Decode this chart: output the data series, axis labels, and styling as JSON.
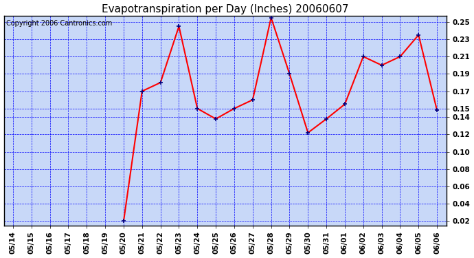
{
  "title": "Evapotranspiration per Day (Inches) 20060607",
  "copyright_text": "Copyright 2006 Cantronics.com",
  "x_labels": [
    "05/14",
    "05/15",
    "05/16",
    "05/17",
    "05/18",
    "05/19",
    "05/20",
    "05/21",
    "05/22",
    "05/23",
    "05/24",
    "05/25",
    "05/26",
    "05/27",
    "05/28",
    "05/29",
    "05/30",
    "05/31",
    "06/01",
    "06/02",
    "06/03",
    "06/04",
    "06/05",
    "06/06"
  ],
  "y_values": [
    null,
    null,
    null,
    null,
    null,
    null,
    0.02,
    0.17,
    0.18,
    0.245,
    0.15,
    0.138,
    0.15,
    0.16,
    0.255,
    0.19,
    0.122,
    0.138,
    0.155,
    0.21,
    0.2,
    0.21,
    0.235,
    0.148
  ],
  "y_min": 0.015,
  "y_max": 0.257,
  "y_ticks": [
    0.02,
    0.04,
    0.06,
    0.08,
    0.1,
    0.12,
    0.14,
    0.15,
    0.17,
    0.19,
    0.21,
    0.23,
    0.25
  ],
  "line_color": "red",
  "marker_color": "#000080",
  "bg_color": "#c8d8f8",
  "grid_color": "blue",
  "title_color": "black",
  "copyright_color": "black",
  "title_fontsize": 11,
  "copyright_fontsize": 7,
  "tick_fontsize": 7.5,
  "marker_size": 5
}
